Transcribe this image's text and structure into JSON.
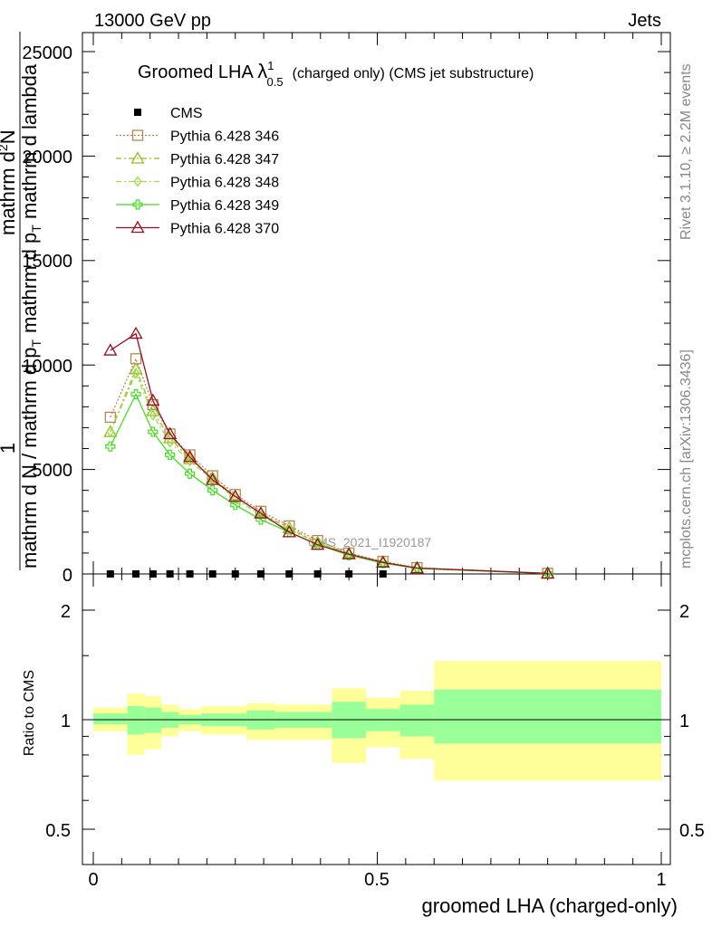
{
  "header": {
    "left": "13000 GeV pp",
    "right": "Jets"
  },
  "title": {
    "prefix": "Groomed LHA ",
    "lambda": "λ",
    "sup": "1",
    "sub": "0.5",
    "suffix": "(charged only) (CMS jet substructure)"
  },
  "ylabel": {
    "numerator": "1",
    "denominator": "mathrm d N / mathrm d p",
    "denominator_sub": "T",
    "right_num": "mathrm d",
    "right_sup": "2",
    "right_n": "N",
    "right_den": "mathrm d p",
    "right_den_sub": "T",
    "right_den_tail": " mathrm d lambda"
  },
  "side_text": {
    "rivet": "Rivet 3.1.10, ≥ 2.2M events",
    "mcplots": "mcplots.cern.ch [arXiv:1306.3436]"
  },
  "watermark": "CMS_2021_I1920187",
  "xlabel": "groomed LHA (charged-only)",
  "ratio_ylabel": "Ratio to CMS",
  "top_ticks": [
    "0",
    "5000",
    "10000",
    "15000",
    "20000"
  ],
  "x_ticks": [
    "0",
    "0.5",
    "1"
  ],
  "ratio_ticks": [
    "0.5",
    "1",
    "2"
  ],
  "chart_data": [
    {
      "type": "line",
      "panel": "main",
      "xlim": [
        -0.04,
        1.01
      ],
      "ylim": [
        0,
        25000
      ],
      "legend": "top-left",
      "series": [
        {
          "name": "CMS",
          "color": "#000000",
          "marker": "square",
          "x": [
            0.03,
            0.075,
            0.105,
            0.135,
            0.17,
            0.21,
            0.25,
            0.295,
            0.345,
            0.395,
            0.45,
            0.51
          ],
          "values": [
            0,
            0,
            0,
            0,
            0,
            0,
            0,
            0,
            0,
            0,
            0,
            0
          ]
        },
        {
          "name": "Pythia 6.428 346",
          "color": "#b8864f",
          "marker": "open-square",
          "dash": "dotted",
          "x": [
            0.03,
            0.075,
            0.105,
            0.135,
            0.17,
            0.21,
            0.25,
            0.295,
            0.345,
            0.395,
            0.45,
            0.51,
            0.57,
            0.8
          ],
          "values": [
            7500,
            10300,
            8100,
            6700,
            5700,
            4700,
            3800,
            3000,
            2300,
            1600,
            1000,
            600,
            300,
            30
          ]
        },
        {
          "name": "Pythia 6.428 347",
          "color": "#99bb22",
          "marker": "open-triangle",
          "dash": "dashdot",
          "x": [
            0.03,
            0.075,
            0.105,
            0.135,
            0.17,
            0.21,
            0.25,
            0.295,
            0.345,
            0.395,
            0.45,
            0.51,
            0.57,
            0.8
          ],
          "values": [
            6800,
            9800,
            7800,
            6500,
            5500,
            4600,
            3700,
            2900,
            2200,
            1500,
            950,
            550,
            280,
            25
          ]
        },
        {
          "name": "Pythia 6.428 348",
          "color": "#99dd44",
          "marker": "open-diamond",
          "dash": "dashdot",
          "x": [
            0.03,
            0.075,
            0.105,
            0.135,
            0.17,
            0.21,
            0.25,
            0.295,
            0.345,
            0.395,
            0.45,
            0.51,
            0.57,
            0.8
          ],
          "values": [
            6800,
            9600,
            7600,
            6300,
            5400,
            4500,
            3600,
            2800,
            2100,
            1500,
            950,
            550,
            280,
            25
          ]
        },
        {
          "name": "Pythia 6.428 349",
          "color": "#44dd22",
          "marker": "open-cross",
          "dash": "solid",
          "x": [
            0.03,
            0.075,
            0.105,
            0.135,
            0.17,
            0.21,
            0.25,
            0.295,
            0.345,
            0.395,
            0.45,
            0.51,
            0.57,
            0.8
          ],
          "values": [
            6100,
            8600,
            6800,
            5700,
            4800,
            4000,
            3300,
            2600,
            2000,
            1400,
            900,
            520,
            260,
            22
          ]
        },
        {
          "name": "Pythia 6.428 370",
          "color": "#990f1f",
          "marker": "open-triangle",
          "dash": "solid",
          "x": [
            0.03,
            0.075,
            0.105,
            0.135,
            0.17,
            0.21,
            0.25,
            0.295,
            0.345,
            0.395,
            0.45,
            0.51,
            0.57,
            0.8
          ],
          "values": [
            10700,
            11500,
            8300,
            6700,
            5600,
            4500,
            3700,
            2900,
            2000,
            1400,
            950,
            550,
            280,
            25
          ]
        }
      ]
    },
    {
      "type": "area",
      "panel": "ratio",
      "xlim": [
        -0.04,
        1.01
      ],
      "ylim": [
        0.4,
        2.4
      ],
      "ylog": true,
      "bins": [
        {
          "x0": 0.0,
          "x1": 0.06,
          "y_lo": 0.93,
          "y_hi": 1.08,
          "g_lo": 0.97,
          "g_hi": 1.04
        },
        {
          "x0": 0.06,
          "x1": 0.09,
          "y_lo": 0.8,
          "y_hi": 1.18,
          "g_lo": 0.91,
          "g_hi": 1.09
        },
        {
          "x0": 0.09,
          "x1": 0.12,
          "y_lo": 0.83,
          "y_hi": 1.16,
          "g_lo": 0.92,
          "g_hi": 1.08
        },
        {
          "x0": 0.12,
          "x1": 0.15,
          "y_lo": 0.9,
          "y_hi": 1.1,
          "g_lo": 0.95,
          "g_hi": 1.05
        },
        {
          "x0": 0.15,
          "x1": 0.19,
          "y_lo": 0.93,
          "y_hi": 1.07,
          "g_lo": 0.97,
          "g_hi": 1.03
        },
        {
          "x0": 0.19,
          "x1": 0.27,
          "y_lo": 0.91,
          "y_hi": 1.09,
          "g_lo": 0.96,
          "g_hi": 1.04
        },
        {
          "x0": 0.27,
          "x1": 0.32,
          "y_lo": 0.88,
          "y_hi": 1.11,
          "g_lo": 0.94,
          "g_hi": 1.06
        },
        {
          "x0": 0.32,
          "x1": 0.42,
          "y_lo": 0.88,
          "y_hi": 1.1,
          "g_lo": 0.95,
          "g_hi": 1.05
        },
        {
          "x0": 0.42,
          "x1": 0.48,
          "y_lo": 0.76,
          "y_hi": 1.22,
          "g_lo": 0.89,
          "g_hi": 1.12
        },
        {
          "x0": 0.48,
          "x1": 0.54,
          "y_lo": 0.84,
          "y_hi": 1.15,
          "g_lo": 0.93,
          "g_hi": 1.07
        },
        {
          "x0": 0.54,
          "x1": 0.6,
          "y_lo": 0.78,
          "y_hi": 1.2,
          "g_lo": 0.9,
          "g_hi": 1.1
        },
        {
          "x0": 0.6,
          "x1": 1.0,
          "y_lo": 0.68,
          "y_hi": 1.45,
          "g_lo": 0.86,
          "g_hi": 1.21
        }
      ]
    }
  ]
}
